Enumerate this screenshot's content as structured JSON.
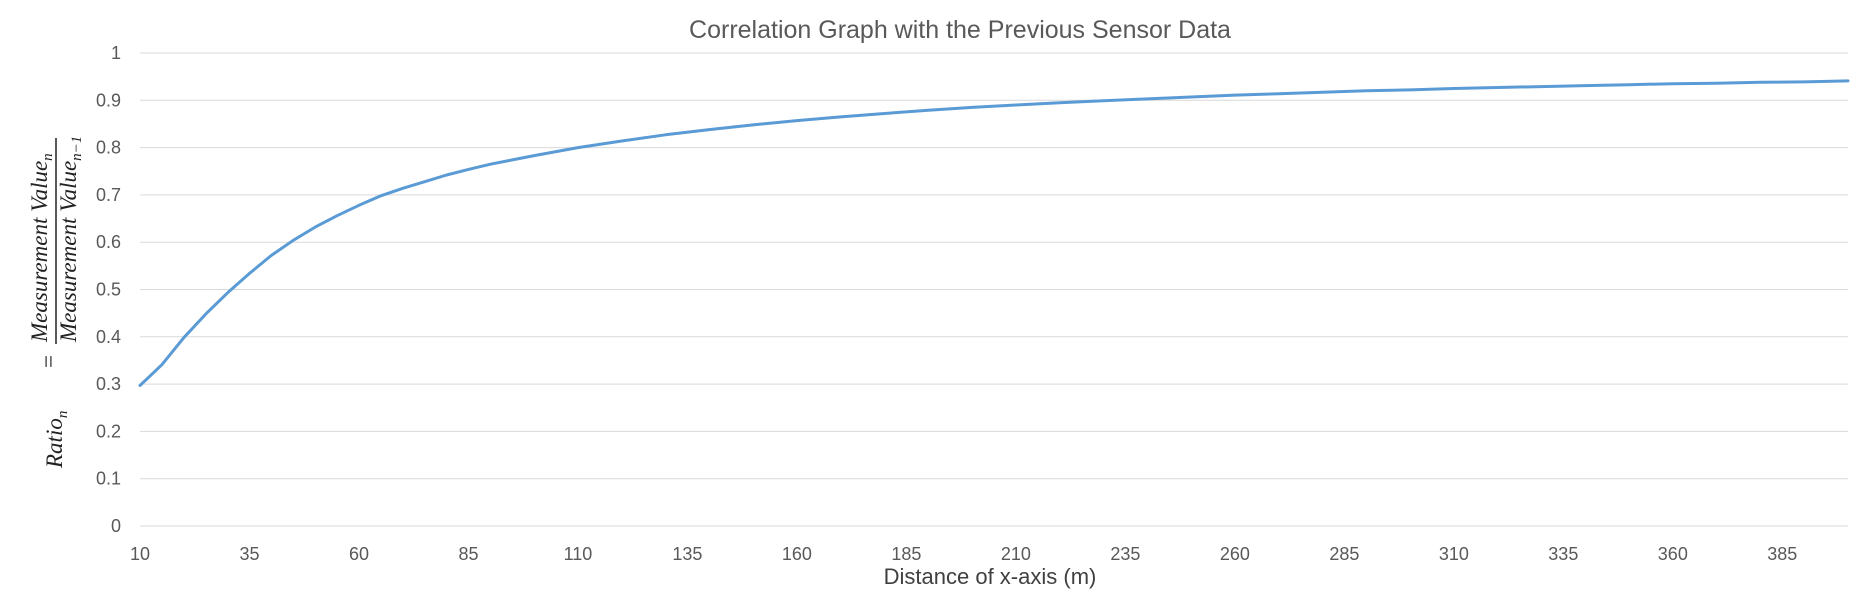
{
  "chart_data": {
    "type": "line",
    "title": "Correlation Graph with the Previous Sensor Data",
    "xlabel": "Distance of x-axis (m)",
    "ylabel": {
      "lhs_base": "Ratio",
      "lhs_sub": "n",
      "equals": "=",
      "numerator_base": "Measurement Value",
      "numerator_sub": "n",
      "denominator_base": "Measurement Value",
      "denominator_sub": "n−1"
    },
    "xlim": [
      10,
      400
    ],
    "ylim": [
      0,
      1
    ],
    "x_ticks": [
      10,
      35,
      60,
      85,
      110,
      135,
      160,
      185,
      210,
      235,
      260,
      285,
      310,
      335,
      360,
      385
    ],
    "y_ticks": [
      0,
      0.1,
      0.2,
      0.3,
      0.4,
      0.5,
      0.6,
      0.7,
      0.8,
      0.9,
      1
    ],
    "y_tick_labels": [
      "0",
      "0.1",
      "0.2",
      "0.3",
      "0.4",
      "0.5",
      "0.6",
      "0.7",
      "0.8",
      "0.9",
      "1"
    ],
    "grid": true,
    "series": [
      {
        "name": "Ratio",
        "color": "#5b9bd5",
        "x": [
          10,
          15,
          20,
          25,
          30,
          35,
          40,
          45,
          50,
          55,
          60,
          65,
          70,
          75,
          80,
          85,
          90,
          95,
          100,
          110,
          120,
          130,
          140,
          150,
          160,
          170,
          180,
          190,
          200,
          210,
          220,
          230,
          240,
          250,
          260,
          270,
          280,
          290,
          300,
          310,
          320,
          330,
          340,
          350,
          360,
          370,
          380,
          390,
          400
        ],
        "y": [
          0.297,
          0.341,
          0.398,
          0.448,
          0.493,
          0.534,
          0.572,
          0.604,
          0.632,
          0.656,
          0.678,
          0.698,
          0.714,
          0.728,
          0.742,
          0.754,
          0.765,
          0.774,
          0.783,
          0.8,
          0.814,
          0.827,
          0.838,
          0.848,
          0.857,
          0.865,
          0.872,
          0.879,
          0.885,
          0.89,
          0.895,
          0.899,
          0.903,
          0.907,
          0.911,
          0.914,
          0.917,
          0.92,
          0.922,
          0.925,
          0.927,
          0.929,
          0.931,
          0.933,
          0.935,
          0.936,
          0.938,
          0.939,
          0.941
        ]
      }
    ]
  }
}
